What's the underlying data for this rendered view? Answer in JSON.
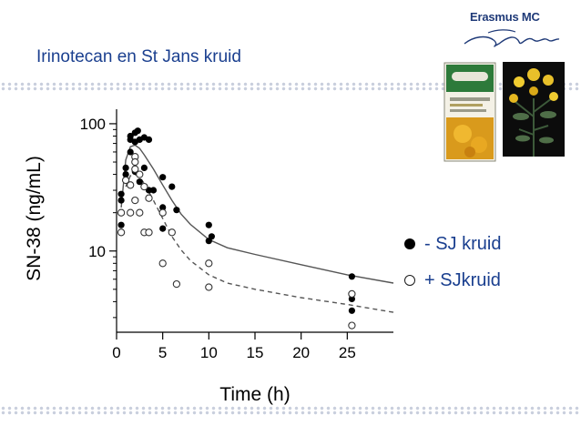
{
  "slide": {
    "title": "Irinotecan en St Jans kruid",
    "logo_text": "Erasmus MC",
    "accent_color": "#1a3f8f"
  },
  "images": {
    "product": "herbal-product-box-image",
    "plant": "st-johns-wort-plant-image"
  },
  "legend": [
    {
      "label": "- SJ kruid",
      "marker": "filled-circle"
    },
    {
      "label": "+ SJkruid",
      "marker": "open-circle"
    }
  ],
  "chart_data": {
    "type": "scatter",
    "title": "",
    "xlabel": "Time (h)",
    "ylabel": "SN-38 (ng/mL)",
    "xlim": [
      0,
      30
    ],
    "ylim": [
      2.3,
      130
    ],
    "yscale": "log",
    "x_ticks": [
      0,
      5,
      10,
      15,
      20,
      25
    ],
    "y_ticks": [
      {
        "value": 10,
        "label": "10"
      },
      {
        "value": 100,
        "label": "100"
      }
    ],
    "grid": false,
    "legend_position": "right",
    "series": [
      {
        "marker": "filled-circle",
        "points": [
          [
            0.5,
            25
          ],
          [
            0.5,
            28
          ],
          [
            0.5,
            16
          ],
          [
            1.0,
            45
          ],
          [
            1.0,
            40
          ],
          [
            1.5,
            60
          ],
          [
            1.5,
            75
          ],
          [
            1.5,
            80
          ],
          [
            2.0,
            85
          ],
          [
            2.0,
            72
          ],
          [
            2.0,
            42
          ],
          [
            2.3,
            88
          ],
          [
            2.5,
            75
          ],
          [
            2.5,
            35
          ],
          [
            3.0,
            78
          ],
          [
            3.0,
            45
          ],
          [
            3.5,
            75
          ],
          [
            3.5,
            30
          ],
          [
            4.0,
            30
          ],
          [
            5.0,
            38
          ],
          [
            5.0,
            22
          ],
          [
            5.0,
            15
          ],
          [
            6.0,
            32
          ],
          [
            6.5,
            21
          ],
          [
            10.0,
            16
          ],
          [
            10.0,
            12
          ],
          [
            10.3,
            13
          ],
          [
            25.5,
            6.3
          ],
          [
            25.5,
            4.2
          ],
          [
            25.5,
            3.4
          ]
        ]
      },
      {
        "marker": "open-circle",
        "points": [
          [
            0.5,
            20
          ],
          [
            0.5,
            14
          ],
          [
            1.0,
            36
          ],
          [
            1.5,
            33
          ],
          [
            1.5,
            20
          ],
          [
            2.0,
            55
          ],
          [
            2.0,
            50
          ],
          [
            2.0,
            44
          ],
          [
            2.0,
            25
          ],
          [
            2.5,
            40
          ],
          [
            2.5,
            20
          ],
          [
            3.0,
            32
          ],
          [
            3.0,
            14
          ],
          [
            3.5,
            26
          ],
          [
            3.5,
            14
          ],
          [
            5.0,
            20
          ],
          [
            5.0,
            8
          ],
          [
            6.0,
            14
          ],
          [
            6.5,
            5.5
          ],
          [
            10.0,
            5.2
          ],
          [
            10.0,
            8
          ],
          [
            25.5,
            4.6
          ],
          [
            25.5,
            2.6
          ]
        ]
      }
    ],
    "fit_lines": [
      {
        "style": "solid",
        "points": [
          [
            0.5,
            22
          ],
          [
            1.0,
            52
          ],
          [
            1.5,
            66
          ],
          [
            2.0,
            68
          ],
          [
            2.5,
            64
          ],
          [
            3.0,
            57
          ],
          [
            4.0,
            44
          ],
          [
            5.0,
            33
          ],
          [
            6.0,
            25
          ],
          [
            7.0,
            19.5
          ],
          [
            8.0,
            16.2
          ],
          [
            10.0,
            12.3
          ],
          [
            12.0,
            10.6
          ],
          [
            15.0,
            9.4
          ],
          [
            20.0,
            7.8
          ],
          [
            25.0,
            6.5
          ],
          [
            30.0,
            5.6
          ]
        ]
      },
      {
        "style": "dashed",
        "points": [
          [
            1.0,
            32
          ],
          [
            1.5,
            39
          ],
          [
            2.0,
            40
          ],
          [
            2.5,
            38
          ],
          [
            3.0,
            34
          ],
          [
            4.0,
            25
          ],
          [
            5.0,
            18
          ],
          [
            6.0,
            13
          ],
          [
            7.0,
            10.2
          ],
          [
            8.0,
            8.4
          ],
          [
            10.0,
            6.5
          ],
          [
            12.0,
            5.6
          ],
          [
            15.0,
            5.0
          ],
          [
            20.0,
            4.3
          ],
          [
            25.0,
            3.8
          ],
          [
            30.0,
            3.3
          ]
        ]
      }
    ]
  }
}
